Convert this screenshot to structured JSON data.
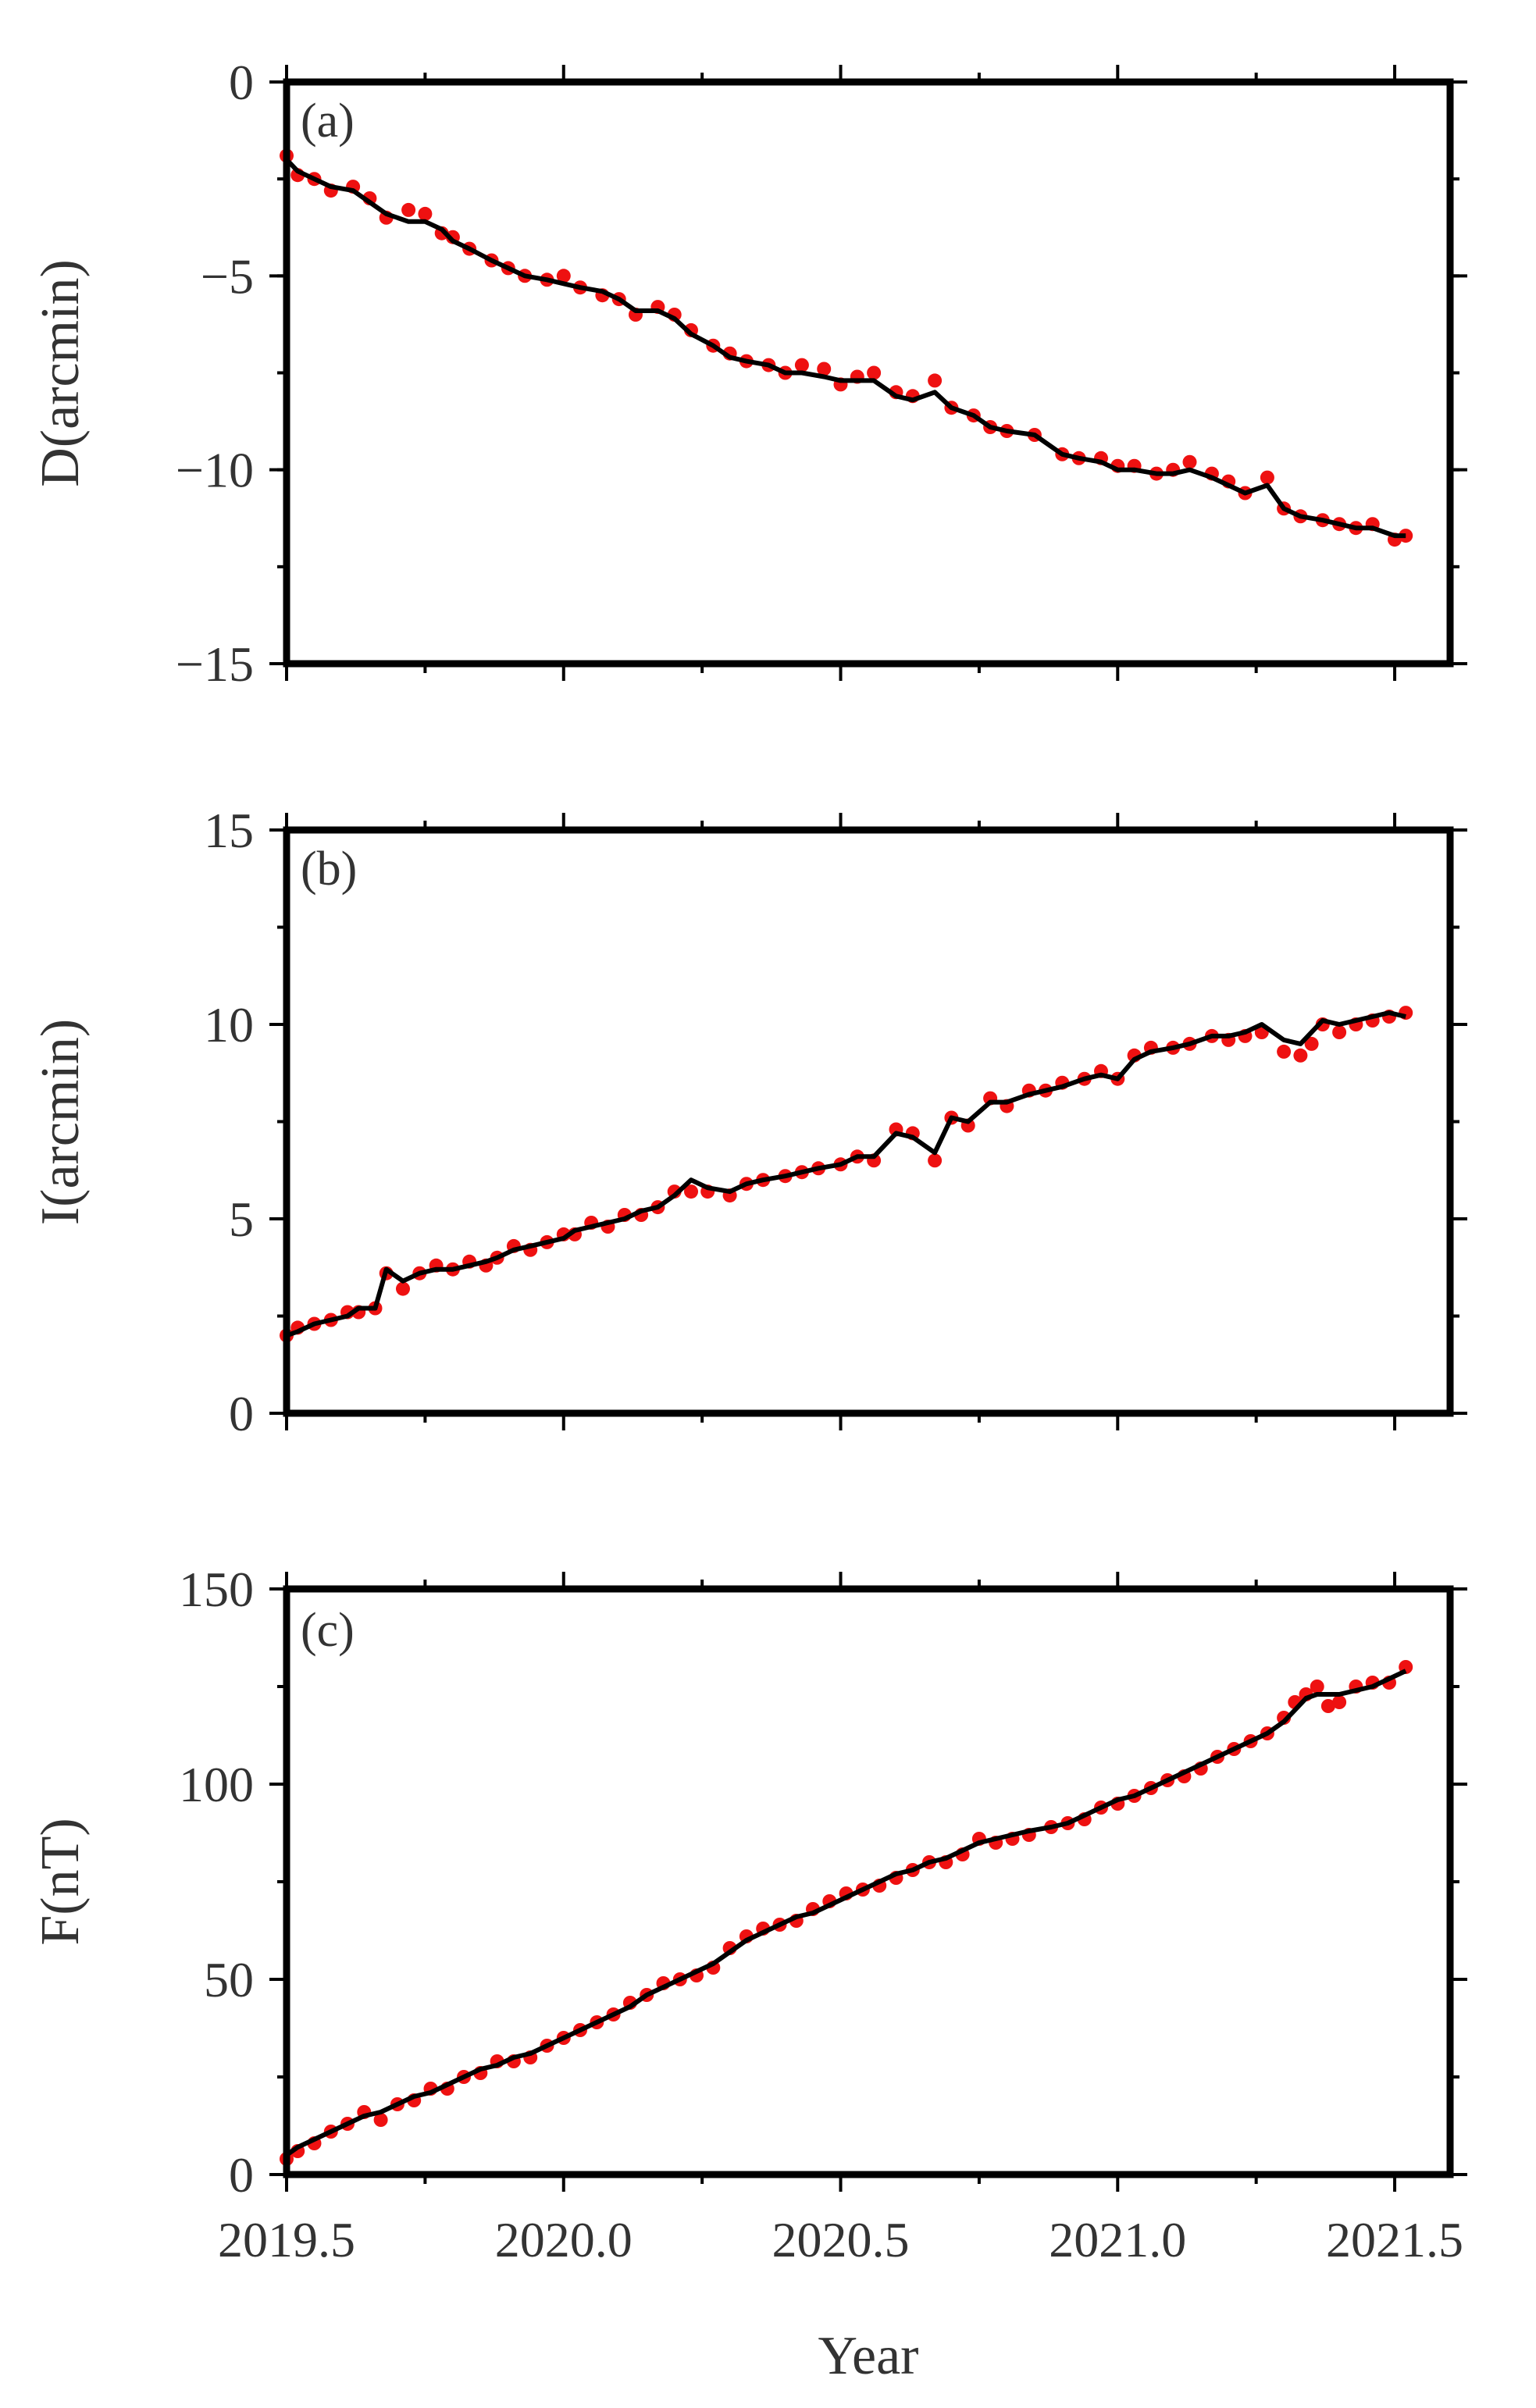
{
  "colors": {
    "observed": "#ee1111",
    "model": "#000000",
    "frame": "#000000",
    "text": "#333333"
  },
  "chart_data": [
    {
      "type": "scatter",
      "label": "(a)",
      "xlabel": "",
      "ylabel": "D(arcmin)",
      "xlim": [
        2019.5,
        2021.6
      ],
      "ylim": [
        -15,
        0
      ],
      "grid": false,
      "y_ticks": [
        "0",
        "−5",
        "−10",
        "−15"
      ],
      "x_ticks": [
        "2019.5",
        "2020.0",
        "2020.5",
        "2021.0",
        "2021.5"
      ],
      "series": [
        {
          "kind": "points",
          "x": [
            2019.5,
            2019.52,
            2019.55,
            2019.58,
            2019.62,
            2019.65,
            2019.68,
            2019.72,
            2019.75,
            2019.78,
            2019.8,
            2019.83,
            2019.87,
            2019.9,
            2019.93,
            2019.97,
            2020.0,
            2020.03,
            2020.07,
            2020.1,
            2020.13,
            2020.17,
            2020.2,
            2020.23,
            2020.27,
            2020.3,
            2020.33,
            2020.37,
            2020.4,
            2020.43,
            2020.47,
            2020.5,
            2020.53,
            2020.56,
            2020.6,
            2020.63,
            2020.67,
            2020.7,
            2020.74,
            2020.77,
            2020.8,
            2020.85,
            2020.9,
            2020.93,
            2020.97,
            2021.0,
            2021.03,
            2021.07,
            2021.1,
            2021.13,
            2021.17,
            2021.2,
            2021.23,
            2021.27,
            2021.3,
            2021.33,
            2021.37,
            2021.4,
            2021.43,
            2021.46,
            2021.5,
            2021.52
          ],
          "y": [
            -1.9,
            -2.4,
            -2.5,
            -2.8,
            -2.7,
            -3.0,
            -3.5,
            -3.3,
            -3.4,
            -3.9,
            -4.0,
            -4.3,
            -4.6,
            -4.8,
            -5.0,
            -5.1,
            -5.0,
            -5.3,
            -5.5,
            -5.6,
            -6.0,
            -5.8,
            -6.0,
            -6.4,
            -6.8,
            -7.0,
            -7.2,
            -7.3,
            -7.5,
            -7.3,
            -7.4,
            -7.8,
            -7.6,
            -7.5,
            -8.0,
            -8.1,
            -7.7,
            -8.4,
            -8.6,
            -8.9,
            -9.0,
            -9.1,
            -9.6,
            -9.7,
            -9.7,
            -9.9,
            -9.9,
            -10.1,
            -10.0,
            -9.8,
            -10.1,
            -10.3,
            -10.6,
            -10.2,
            -11.0,
            -11.2,
            -11.3,
            -11.4,
            -11.5,
            -11.4,
            -11.8,
            -11.7
          ]
        },
        {
          "kind": "line",
          "x": [
            2019.5,
            2019.52,
            2019.55,
            2019.58,
            2019.62,
            2019.65,
            2019.68,
            2019.72,
            2019.75,
            2019.78,
            2019.8,
            2019.83,
            2019.87,
            2019.9,
            2019.93,
            2019.97,
            2020.0,
            2020.03,
            2020.07,
            2020.1,
            2020.13,
            2020.17,
            2020.2,
            2020.23,
            2020.27,
            2020.3,
            2020.33,
            2020.37,
            2020.4,
            2020.43,
            2020.47,
            2020.5,
            2020.53,
            2020.56,
            2020.6,
            2020.63,
            2020.67,
            2020.7,
            2020.74,
            2020.77,
            2020.8,
            2020.85,
            2020.9,
            2020.93,
            2020.97,
            2021.0,
            2021.03,
            2021.07,
            2021.1,
            2021.13,
            2021.17,
            2021.2,
            2021.23,
            2021.27,
            2021.3,
            2021.33,
            2021.37,
            2021.4,
            2021.43,
            2021.46,
            2021.5,
            2021.52
          ],
          "y": [
            -2.0,
            -2.3,
            -2.5,
            -2.7,
            -2.8,
            -3.1,
            -3.4,
            -3.6,
            -3.6,
            -3.8,
            -4.1,
            -4.3,
            -4.6,
            -4.8,
            -5.0,
            -5.1,
            -5.2,
            -5.3,
            -5.4,
            -5.6,
            -5.9,
            -5.9,
            -6.1,
            -6.5,
            -6.8,
            -7.1,
            -7.2,
            -7.3,
            -7.5,
            -7.5,
            -7.6,
            -7.7,
            -7.7,
            -7.7,
            -8.1,
            -8.2,
            -8.0,
            -8.4,
            -8.6,
            -8.9,
            -9.0,
            -9.1,
            -9.6,
            -9.7,
            -9.8,
            -10.0,
            -10.0,
            -10.1,
            -10.1,
            -10.0,
            -10.2,
            -10.4,
            -10.6,
            -10.4,
            -11.0,
            -11.2,
            -11.3,
            -11.4,
            -11.5,
            -11.5,
            -11.7,
            -11.7
          ]
        }
      ]
    },
    {
      "type": "scatter",
      "label": "(b)",
      "xlabel": "",
      "ylabel": "I(arcmin)",
      "xlim": [
        2019.5,
        2021.6
      ],
      "ylim": [
        0,
        15
      ],
      "grid": false,
      "y_ticks": [
        "15",
        "10",
        "5",
        "0"
      ],
      "x_ticks": [
        "2019.5",
        "2020.0",
        "2020.5",
        "2021.0",
        "2021.5"
      ],
      "series": [
        {
          "kind": "points",
          "x": [
            2019.5,
            2019.52,
            2019.55,
            2019.58,
            2019.61,
            2019.63,
            2019.66,
            2019.68,
            2019.71,
            2019.74,
            2019.77,
            2019.8,
            2019.83,
            2019.86,
            2019.88,
            2019.91,
            2019.94,
            2019.97,
            2020.0,
            2020.02,
            2020.05,
            2020.08,
            2020.11,
            2020.14,
            2020.17,
            2020.2,
            2020.23,
            2020.26,
            2020.3,
            2020.33,
            2020.36,
            2020.4,
            2020.43,
            2020.46,
            2020.5,
            2020.53,
            2020.56,
            2020.6,
            2020.63,
            2020.67,
            2020.7,
            2020.73,
            2020.77,
            2020.8,
            2020.84,
            2020.87,
            2020.9,
            2020.94,
            2020.97,
            2021.0,
            2021.03,
            2021.06,
            2021.1,
            2021.13,
            2021.17,
            2021.2,
            2021.23,
            2021.26,
            2021.3,
            2021.33,
            2021.35,
            2021.37,
            2021.4,
            2021.43,
            2021.46,
            2021.49,
            2021.52
          ],
          "y": [
            2.0,
            2.2,
            2.3,
            2.4,
            2.6,
            2.6,
            2.7,
            3.6,
            3.2,
            3.6,
            3.8,
            3.7,
            3.9,
            3.8,
            4.0,
            4.3,
            4.2,
            4.4,
            4.6,
            4.6,
            4.9,
            4.8,
            5.1,
            5.1,
            5.3,
            5.7,
            5.7,
            5.7,
            5.6,
            5.9,
            6.0,
            6.1,
            6.2,
            6.3,
            6.4,
            6.6,
            6.5,
            7.3,
            7.2,
            6.5,
            7.6,
            7.4,
            8.1,
            7.9,
            8.3,
            8.3,
            8.5,
            8.6,
            8.8,
            8.6,
            9.2,
            9.4,
            9.4,
            9.5,
            9.7,
            9.6,
            9.7,
            9.8,
            9.3,
            9.2,
            9.5,
            10.0,
            9.8,
            10.0,
            10.1,
            10.2,
            10.3
          ]
        },
        {
          "kind": "line",
          "x": [
            2019.5,
            2019.52,
            2019.55,
            2019.58,
            2019.61,
            2019.63,
            2019.66,
            2019.68,
            2019.71,
            2019.74,
            2019.77,
            2019.8,
            2019.83,
            2019.86,
            2019.88,
            2019.91,
            2019.94,
            2019.97,
            2020.0,
            2020.02,
            2020.05,
            2020.08,
            2020.11,
            2020.14,
            2020.17,
            2020.2,
            2020.23,
            2020.26,
            2020.3,
            2020.33,
            2020.36,
            2020.4,
            2020.43,
            2020.46,
            2020.5,
            2020.53,
            2020.56,
            2020.6,
            2020.63,
            2020.67,
            2020.7,
            2020.73,
            2020.77,
            2020.8,
            2020.84,
            2020.87,
            2020.9,
            2020.94,
            2020.97,
            2021.0,
            2021.03,
            2021.06,
            2021.1,
            2021.13,
            2021.17,
            2021.2,
            2021.23,
            2021.26,
            2021.3,
            2021.33,
            2021.35,
            2021.37,
            2021.4,
            2021.43,
            2021.46,
            2021.49,
            2021.52
          ],
          "y": [
            2.0,
            2.1,
            2.3,
            2.4,
            2.5,
            2.7,
            2.7,
            3.7,
            3.4,
            3.6,
            3.7,
            3.7,
            3.8,
            3.9,
            4.0,
            4.2,
            4.3,
            4.4,
            4.5,
            4.7,
            4.8,
            4.9,
            5.0,
            5.2,
            5.3,
            5.6,
            6.0,
            5.8,
            5.7,
            5.9,
            6.0,
            6.1,
            6.2,
            6.3,
            6.4,
            6.6,
            6.6,
            7.2,
            7.1,
            6.7,
            7.6,
            7.5,
            8.0,
            8.0,
            8.2,
            8.3,
            8.4,
            8.6,
            8.7,
            8.6,
            9.1,
            9.3,
            9.4,
            9.5,
            9.7,
            9.7,
            9.8,
            10.0,
            9.6,
            9.5,
            9.8,
            10.1,
            10.0,
            10.1,
            10.2,
            10.3,
            10.2
          ]
        }
      ]
    },
    {
      "type": "scatter",
      "label": "(c)",
      "xlabel": "Year",
      "ylabel": "F(nT)",
      "xlim": [
        2019.5,
        2021.6
      ],
      "ylim": [
        0,
        150
      ],
      "grid": false,
      "y_ticks": [
        "150",
        "100",
        "50",
        "0"
      ],
      "x_ticks": [
        "2019.5",
        "2020.0",
        "2020.5",
        "2021.0",
        "2021.5"
      ],
      "series": [
        {
          "kind": "points",
          "x": [
            2019.5,
            2019.52,
            2019.55,
            2019.58,
            2019.61,
            2019.64,
            2019.67,
            2019.7,
            2019.73,
            2019.76,
            2019.79,
            2019.82,
            2019.85,
            2019.88,
            2019.91,
            2019.94,
            2019.97,
            2020.0,
            2020.03,
            2020.06,
            2020.09,
            2020.12,
            2020.15,
            2020.18,
            2020.21,
            2020.24,
            2020.27,
            2020.3,
            2020.33,
            2020.36,
            2020.39,
            2020.42,
            2020.45,
            2020.48,
            2020.51,
            2020.54,
            2020.57,
            2020.6,
            2020.63,
            2020.66,
            2020.69,
            2020.72,
            2020.75,
            2020.78,
            2020.81,
            2020.84,
            2020.88,
            2020.91,
            2020.94,
            2020.97,
            2021.0,
            2021.03,
            2021.06,
            2021.09,
            2021.12,
            2021.15,
            2021.18,
            2021.21,
            2021.24,
            2021.27,
            2021.3,
            2021.32,
            2021.34,
            2021.36,
            2021.38,
            2021.4,
            2021.43,
            2021.46,
            2021.49,
            2021.52
          ],
          "y": [
            4,
            6,
            8,
            11,
            13,
            16,
            14,
            18,
            19,
            22,
            22,
            25,
            26,
            29,
            29,
            30,
            33,
            35,
            37,
            39,
            41,
            44,
            46,
            49,
            50,
            51,
            53,
            58,
            61,
            63,
            64,
            65,
            68,
            70,
            72,
            73,
            74,
            76,
            78,
            80,
            80,
            82,
            86,
            85,
            86,
            87,
            89,
            90,
            91,
            94,
            95,
            97,
            99,
            101,
            102,
            104,
            107,
            109,
            111,
            113,
            117,
            121,
            123,
            125,
            120,
            121,
            125,
            126,
            126,
            130
          ]
        },
        {
          "kind": "line",
          "x": [
            2019.5,
            2019.52,
            2019.55,
            2019.58,
            2019.61,
            2019.64,
            2019.67,
            2019.7,
            2019.73,
            2019.76,
            2019.79,
            2019.82,
            2019.85,
            2019.88,
            2019.91,
            2019.94,
            2019.97,
            2020.0,
            2020.03,
            2020.06,
            2020.09,
            2020.12,
            2020.15,
            2020.18,
            2020.21,
            2020.24,
            2020.27,
            2020.3,
            2020.33,
            2020.36,
            2020.39,
            2020.42,
            2020.45,
            2020.48,
            2020.51,
            2020.54,
            2020.57,
            2020.6,
            2020.63,
            2020.66,
            2020.69,
            2020.72,
            2020.75,
            2020.78,
            2020.81,
            2020.84,
            2020.88,
            2020.91,
            2020.94,
            2020.97,
            2021.0,
            2021.03,
            2021.06,
            2021.09,
            2021.12,
            2021.15,
            2021.18,
            2021.21,
            2021.24,
            2021.27,
            2021.3,
            2021.32,
            2021.34,
            2021.36,
            2021.38,
            2021.4,
            2021.43,
            2021.46,
            2021.49,
            2021.52
          ],
          "y": [
            5,
            7,
            9,
            11,
            13,
            15,
            16,
            18,
            20,
            21,
            23,
            25,
            27,
            28,
            30,
            31,
            33,
            35,
            37,
            39,
            41,
            43,
            46,
            48,
            50,
            52,
            54,
            57,
            60,
            62,
            64,
            66,
            67,
            69,
            71,
            73,
            75,
            77,
            78,
            80,
            81,
            83,
            85,
            86,
            87,
            88,
            89,
            90,
            92,
            94,
            96,
            97,
            99,
            101,
            103,
            105,
            107,
            109,
            111,
            113,
            116,
            119,
            122,
            123,
            123,
            123,
            124,
            125,
            127,
            129
          ]
        }
      ]
    }
  ]
}
